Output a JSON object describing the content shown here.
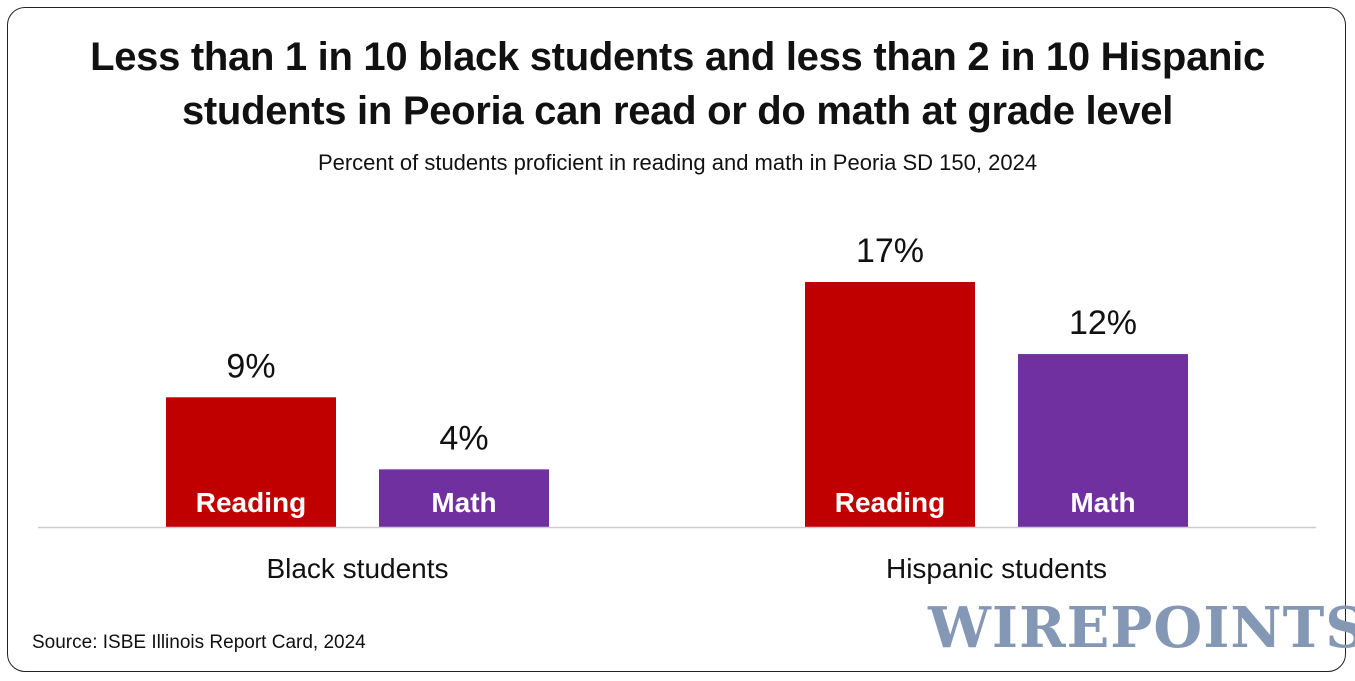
{
  "title_line1": "Less than 1 in 10 black students and less than 2 in 10 Hispanic",
  "title_line2": "students in Peoria can read or do math at grade level",
  "subtitle": "Percent of students proficient in reading and math in Peoria SD 150, 2024",
  "source": "Source: ISBE Illinois Report Card, 2024",
  "logo_text": "WIREPOINTS",
  "colors": {
    "reading": "#c00000",
    "math": "#7030a0",
    "axis": "#cccccc",
    "logo": "#8498b6"
  },
  "chart_data": {
    "type": "bar",
    "categories": [
      "Black students",
      "Hispanic students"
    ],
    "series": [
      {
        "name": "Reading",
        "values": [
          9,
          17
        ]
      },
      {
        "name": "Math",
        "values": [
          4,
          12
        ]
      }
    ],
    "value_labels": [
      [
        "9%",
        "4%"
      ],
      [
        "17%",
        "12%"
      ]
    ],
    "title": "Less than 1 in 10 black students and less than 2 in 10 Hispanic students in Peoria can read or do math at grade level",
    "subtitle": "Percent of students proficient in reading and math in Peoria SD 150, 2024",
    "ylim": [
      0,
      17
    ],
    "grid": false,
    "legend": "none"
  }
}
